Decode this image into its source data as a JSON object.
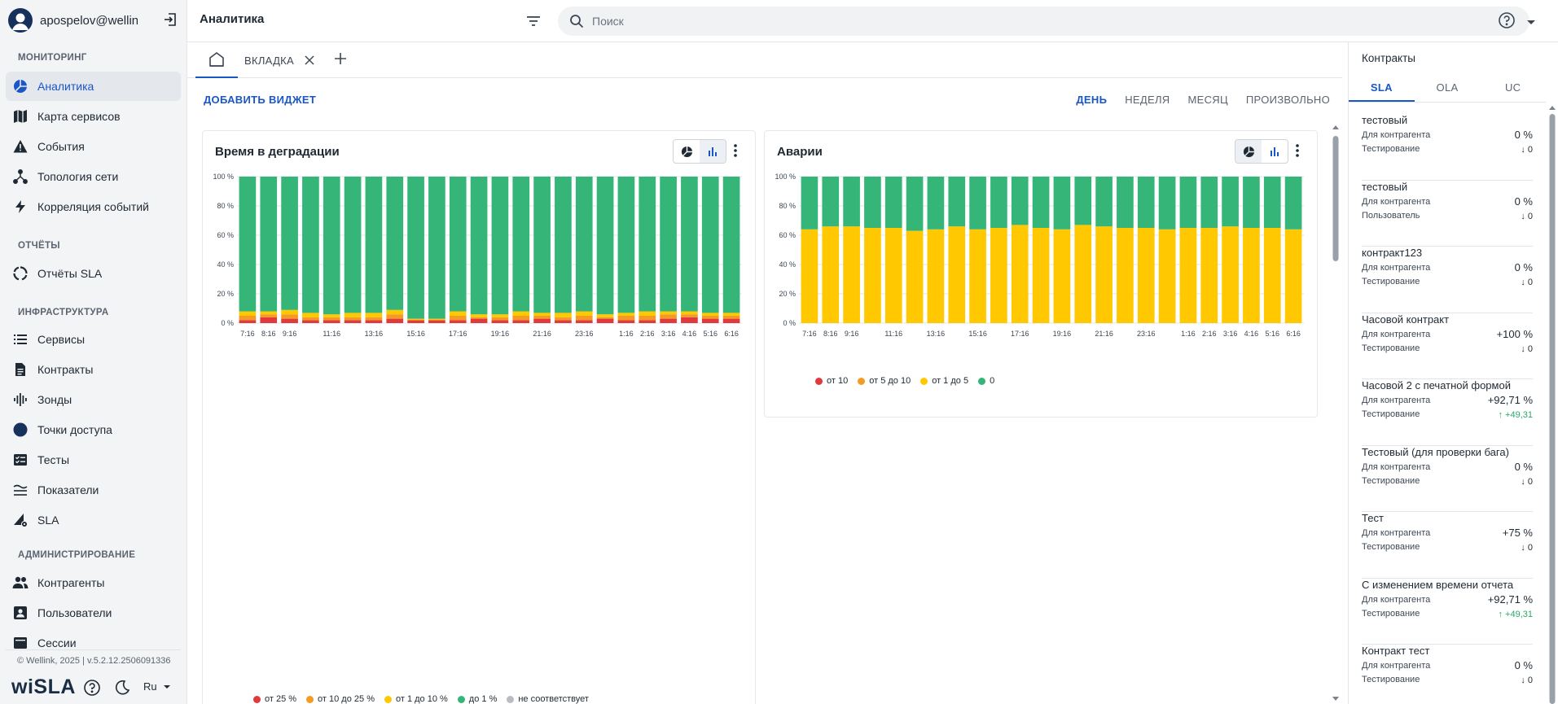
{
  "user": {
    "name": "apospelov@wellin..."
  },
  "nav": {
    "monitoring_title": "МОНИТОРИНГ",
    "monitoring": [
      {
        "label": "Аналитика",
        "icon": "analytics-icon",
        "active": true
      },
      {
        "label": "Карта сервисов",
        "icon": "map-icon"
      },
      {
        "label": "События",
        "icon": "warning-icon"
      },
      {
        "label": "Топология сети",
        "icon": "topology-icon"
      },
      {
        "label": "Корреляция событий",
        "icon": "lightning-icon"
      }
    ],
    "reports_title": "ОТЧЁТЫ",
    "reports": [
      {
        "label": "Отчёты SLA",
        "icon": "sla-report-icon"
      }
    ],
    "infra_title": "ИНФРАСТРУКТУРА",
    "infra": [
      {
        "label": "Сервисы",
        "icon": "list-icon"
      },
      {
        "label": "Контракты",
        "icon": "document-icon"
      },
      {
        "label": "Зонды",
        "icon": "probe-icon"
      },
      {
        "label": "Точки доступа",
        "icon": "access-point-icon"
      },
      {
        "label": "Тесты",
        "icon": "tests-icon"
      },
      {
        "label": "Показатели",
        "icon": "metrics-icon"
      },
      {
        "label": "SLA",
        "icon": "sla-icon"
      }
    ],
    "admin_title": "АДМИНИСТРИРОВАНИЕ",
    "admin": [
      {
        "label": "Контрагенты",
        "icon": "people-icon"
      },
      {
        "label": "Пользователи",
        "icon": "user-badge-icon"
      },
      {
        "label": "Сессии",
        "icon": "sessions-icon"
      }
    ]
  },
  "footer": {
    "copyright": "© Wellink, 2025 | v.5.2.12.2506091336",
    "brand": "wiSLA",
    "lang": "Ru"
  },
  "topbar": {
    "title": "Аналитика",
    "search_placeholder": "Поиск"
  },
  "tabs": {
    "tab1": "ВКЛАДКА"
  },
  "toolbar": {
    "add_widget": "ДОБАВИТЬ ВИДЖЕТ",
    "periods": [
      "ДЕНЬ",
      "НЕДЕЛЯ",
      "МЕСЯЦ",
      "ПРОИЗВОЛЬНО"
    ]
  },
  "colors": {
    "accent": "#1a56c4",
    "green": "#35b678",
    "yellow": "#ffc800",
    "orange": "#f59a23",
    "red": "#e0393e",
    "gray": "#b8bcc2"
  },
  "chart_data": [
    {
      "type": "bar",
      "stacked": true,
      "title": "Время в деградации",
      "ylabel": "%",
      "ylim": [
        0,
        100
      ],
      "yticks": [
        "0 %",
        "20 %",
        "40 %",
        "60 %",
        "80 %",
        "100 %"
      ],
      "x_tick_labels": [
        "7:16",
        "8:16",
        "9:16",
        "",
        "11:16",
        "",
        "13:16",
        "",
        "15:16",
        "",
        "17:16",
        "",
        "19:16",
        "",
        "21:16",
        "",
        "23:16",
        "",
        "1:16",
        "2:16",
        "3:16",
        "4:16",
        "5:16",
        "6:16"
      ],
      "series": [
        {
          "name": "от 25 %",
          "color": "#e0393e",
          "values": [
            2,
            4,
            3,
            2,
            2,
            2,
            2,
            3,
            2,
            2,
            2,
            3,
            2,
            2,
            3,
            2,
            2,
            3,
            2,
            2,
            3,
            4,
            3,
            3
          ]
        },
        {
          "name": "от 10 до 25 %",
          "color": "#f59a23",
          "values": [
            3,
            2,
            3,
            2,
            2,
            2,
            2,
            3,
            0,
            0,
            3,
            1,
            2,
            3,
            2,
            2,
            3,
            1,
            3,
            3,
            3,
            2,
            2,
            2
          ]
        },
        {
          "name": "от 1 до 10 %",
          "color": "#ffc800",
          "values": [
            3,
            2,
            3,
            3,
            2,
            3,
            3,
            3,
            1,
            1,
            3,
            2,
            2,
            3,
            2,
            3,
            3,
            2,
            2,
            3,
            2,
            2,
            2,
            2
          ]
        },
        {
          "name": "до 1 %",
          "color": "#35b678",
          "values": [
            92,
            92,
            91,
            93,
            94,
            93,
            93,
            91,
            97,
            97,
            92,
            94,
            94,
            92,
            93,
            93,
            92,
            94,
            93,
            92,
            92,
            92,
            93,
            93
          ]
        },
        {
          "name": "не соответствует",
          "color": "#b8bcc2",
          "values": [
            0,
            0,
            0,
            0,
            0,
            0,
            0,
            0,
            0,
            0,
            0,
            0,
            0,
            0,
            0,
            0,
            0,
            0,
            0,
            0,
            0,
            0,
            0,
            0
          ]
        }
      ]
    },
    {
      "type": "bar",
      "stacked": true,
      "title": "Аварии",
      "ylabel": "%",
      "ylim": [
        0,
        100
      ],
      "yticks": [
        "0 %",
        "20 %",
        "40 %",
        "60 %",
        "80 %",
        "100 %"
      ],
      "x_tick_labels": [
        "7:16",
        "8:16",
        "9:16",
        "",
        "11:16",
        "",
        "13:16",
        "",
        "15:16",
        "",
        "17:16",
        "",
        "19:16",
        "",
        "21:16",
        "",
        "23:16",
        "",
        "1:16",
        "2:16",
        "3:16",
        "4:16",
        "5:16",
        "6:16"
      ],
      "series": [
        {
          "name": "от 10",
          "color": "#e0393e",
          "values": [
            0,
            0,
            0,
            0,
            0,
            0,
            0,
            0,
            0,
            0,
            0,
            0,
            0,
            0,
            0,
            0,
            0,
            0,
            0,
            0,
            0,
            0,
            0,
            0
          ]
        },
        {
          "name": "от 5 до 10",
          "color": "#f59a23",
          "values": [
            0,
            0,
            0,
            0,
            0,
            0,
            0,
            0,
            0,
            0,
            0,
            0,
            0,
            0,
            0,
            0,
            0,
            0,
            0,
            0,
            0,
            0,
            0,
            0
          ]
        },
        {
          "name": "от 1 до 5",
          "color": "#ffc800",
          "values": [
            64,
            66,
            66,
            65,
            65,
            63,
            64,
            66,
            64,
            65,
            67,
            65,
            64,
            67,
            66,
            65,
            65,
            64,
            65,
            65,
            66,
            65,
            65,
            64
          ]
        },
        {
          "name": "0",
          "color": "#35b678",
          "values": [
            36,
            34,
            34,
            35,
            35,
            37,
            36,
            34,
            36,
            35,
            33,
            35,
            36,
            33,
            34,
            35,
            35,
            36,
            35,
            35,
            34,
            35,
            35,
            36
          ]
        }
      ]
    }
  ],
  "right_panel": {
    "title": "Контракты",
    "tabs": [
      "SLA",
      "OLA",
      "UC"
    ],
    "contracts": [
      {
        "name": "тестовый",
        "row1_label": "Для контрагента",
        "row1_value": "0 %",
        "row2_label": "Тестирование",
        "row2_value": "↓ 0",
        "trend": "down"
      },
      {
        "name": "тестовый",
        "row1_label": "Для контрагента",
        "row1_value": "0 %",
        "row2_label": "Пользователь",
        "row2_value": "↓ 0",
        "trend": "down"
      },
      {
        "name": "контракт123",
        "row1_label": "Для контрагента",
        "row1_value": "0 %",
        "row2_label": "Тестирование",
        "row2_value": "↓ 0",
        "trend": "down"
      },
      {
        "name": "Часовой контракт",
        "row1_label": "Для контрагента",
        "row1_value": "+100 %",
        "row2_label": "Тестирование",
        "row2_value": "↓ 0",
        "trend": "down"
      },
      {
        "name": "Часовой 2 с печатной формой",
        "row1_label": "Для контрагента",
        "row1_value": "+92,71 %",
        "row2_label": "Тестирование",
        "row2_value": "↑ +49,31",
        "trend": "up"
      },
      {
        "name": "Тестовый (для проверки бага)",
        "row1_label": "Для контрагента",
        "row1_value": "0 %",
        "row2_label": "Тестирование",
        "row2_value": "↓ 0",
        "trend": "down"
      },
      {
        "name": "Тест",
        "row1_label": "Для контрагента",
        "row1_value": "+75 %",
        "row2_label": "Тестирование",
        "row2_value": "↓ 0",
        "trend": "down"
      },
      {
        "name": "С изменением времени отчета",
        "row1_label": "Для контрагента",
        "row1_value": "+92,71 %",
        "row2_label": "Тестирование",
        "row2_value": "↑ +49,31",
        "trend": "up"
      },
      {
        "name": "Контракт тест",
        "row1_label": "Для контрагента",
        "row1_value": "0 %",
        "row2_label": "Тестирование",
        "row2_value": "↓ 0",
        "trend": "down"
      }
    ]
  }
}
